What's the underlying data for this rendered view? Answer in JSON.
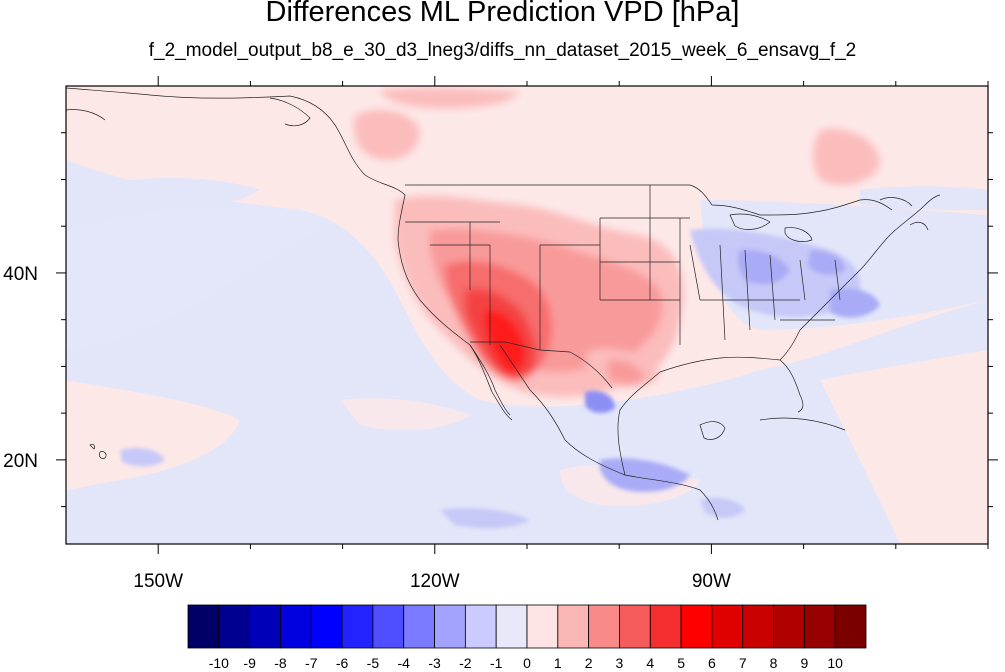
{
  "title": "Differences ML Prediction VPD [hPa]",
  "subtitle": "f_2_model_output_b8_e_30_d3_lneg3/diffs_nn_dataset_2015_week_6_ensavg_f_2",
  "map": {
    "lon_range": [
      -160,
      -60
    ],
    "lat_range": [
      11,
      60
    ],
    "lon_ticks": [
      {
        "value": -150,
        "label": "150W"
      },
      {
        "value": -120,
        "label": "120W"
      },
      {
        "value": -90,
        "label": "90W"
      }
    ],
    "lat_ticks": [
      {
        "value": 40,
        "label": "40N"
      },
      {
        "value": 20,
        "label": "20N"
      }
    ],
    "background_color": "#fde8e8",
    "ocean_tint": "#e3e6f9"
  },
  "colorbar": {
    "labels": [
      "-10",
      "-9",
      "-8",
      "-7",
      "-6",
      "-5",
      "-4",
      "-3",
      "-2",
      "-1",
      "0",
      "1",
      "2",
      "3",
      "4",
      "5",
      "6",
      "7",
      "8",
      "9",
      "10"
    ],
    "colors": [
      "#000066",
      "#00008f",
      "#0000b8",
      "#0000e0",
      "#0000ff",
      "#2323ff",
      "#4f4fff",
      "#7b7bff",
      "#a3a3ff",
      "#cbcbff",
      "#e8e8fa",
      "#fde3e3",
      "#fbb6b6",
      "#f98a8a",
      "#f75c5c",
      "#f42e2e",
      "#ff0000",
      "#e00000",
      "#c80000",
      "#b00000",
      "#960000",
      "#7a0000"
    ]
  }
}
